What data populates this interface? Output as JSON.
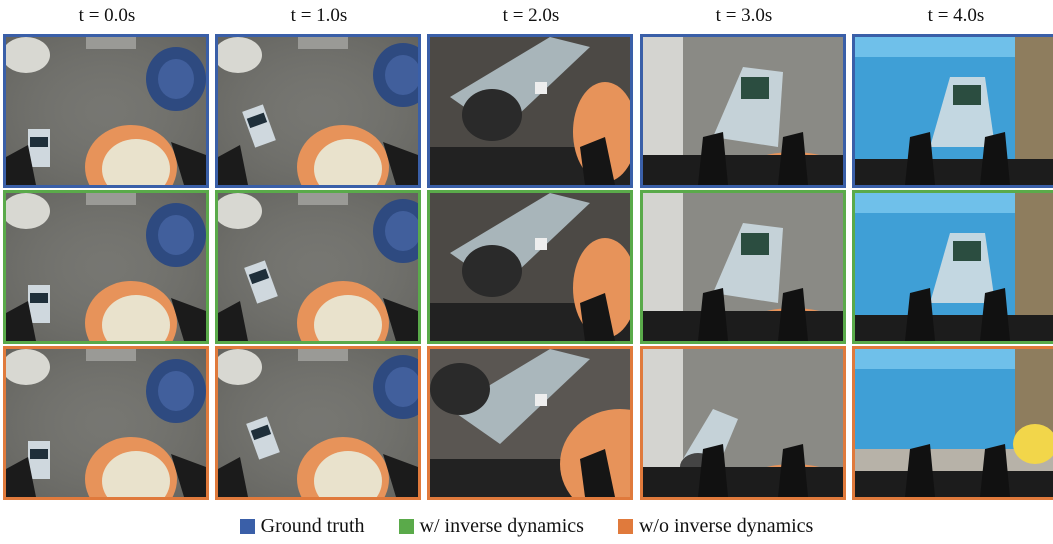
{
  "timesteps": [
    "t = 0.0s",
    "t = 1.0s",
    "t = 2.0s",
    "t = 3.0s",
    "t = 4.0s"
  ],
  "rows": [
    {
      "label": "Ground truth",
      "color": "#3a5fa8"
    },
    {
      "label": "w/ inverse dynamics",
      "color": "#5aaa4a"
    },
    {
      "label": "w/o inverse dynamics",
      "color": "#e07a3c"
    }
  ],
  "legend": {
    "ground_truth": "Ground truth",
    "with_inverse": "w/ inverse dynamics",
    "without_inverse": "w/o inverse dynamics"
  },
  "scenes": [
    "tabletop-bowl",
    "tabletop-bowl-grasp",
    "bottle-lifted-closeup",
    "bottle-over-plate",
    "bottle-in-blue-box"
  ]
}
